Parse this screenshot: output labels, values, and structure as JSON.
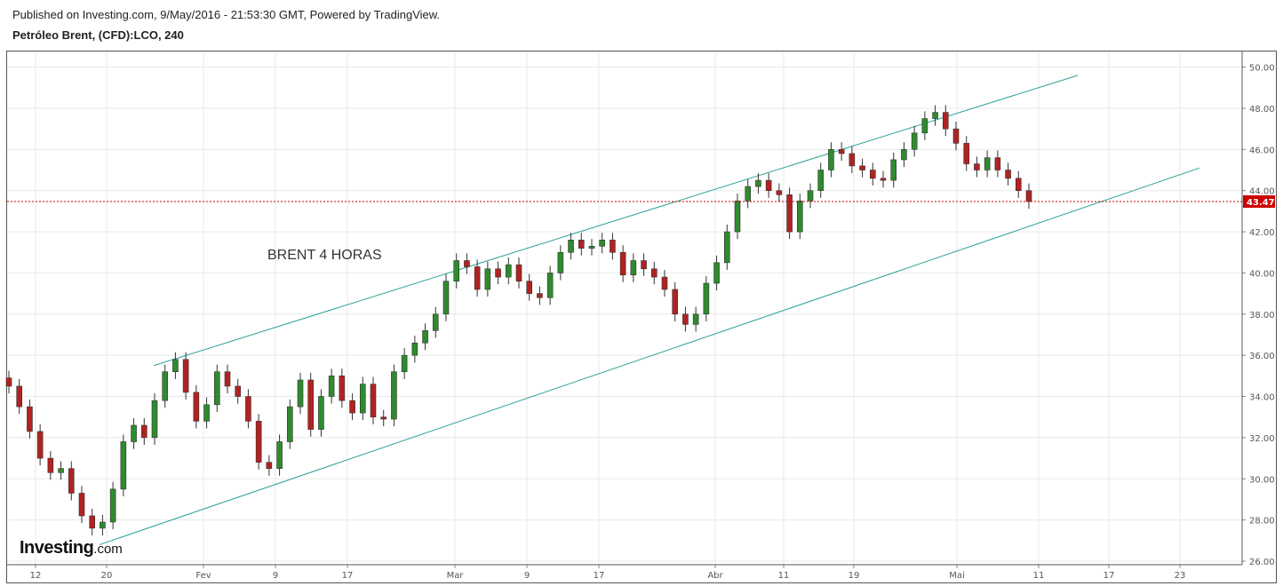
{
  "header": {
    "published": "Published on Investing.com, 9/May/2016 - 21:53:30 GMT, Powered by TradingView.",
    "symbol": "Petróleo Brent, (CFD):LCO, 240"
  },
  "logo": {
    "main": "Investing",
    "suffix": ".com"
  },
  "colors": {
    "up": "#2e8b2e",
    "down": "#b22222",
    "channel": "#2aa198",
    "price_line": "#cc0000",
    "grid": "#e8e8e8"
  },
  "chart_data": {
    "type": "candlestick",
    "title": "",
    "annotation": "BRENT 4 HORAS",
    "ylim": [
      26,
      50.5
    ],
    "y_ticks": [
      "26.00",
      "28.00",
      "30.00",
      "32.00",
      "34.00",
      "36.00",
      "38.00",
      "40.00",
      "42.00",
      "44.00",
      "46.00",
      "48.00",
      "50.00"
    ],
    "x_ticks": [
      "12",
      "20",
      "Fev",
      "9",
      "17",
      "Mar",
      "9",
      "17",
      "Abr",
      "11",
      "19",
      "Mai",
      "11",
      "17",
      "23"
    ],
    "last_price": "43.47",
    "series": [
      {
        "values": [
          [
            "12",
            34.5
          ],
          [
            "",
            33.5
          ],
          [
            "",
            32.3
          ],
          [
            "",
            31.0
          ],
          [
            "",
            30.3
          ],
          [
            "",
            30.5
          ],
          [
            "",
            29.3
          ],
          [
            "",
            28.2
          ],
          [
            "20",
            27.6
          ],
          [
            "",
            27.9
          ],
          [
            "",
            29.5
          ],
          [
            "",
            31.8
          ],
          [
            "",
            32.6
          ],
          [
            "",
            32.0
          ],
          [
            "",
            33.8
          ],
          [
            "",
            35.2
          ],
          [
            "Fev",
            35.8
          ],
          [
            "",
            34.2
          ],
          [
            "",
            32.8
          ],
          [
            "",
            33.6
          ],
          [
            "",
            35.2
          ],
          [
            "",
            34.5
          ],
          [
            "",
            34.0
          ],
          [
            "",
            32.8
          ],
          [
            "9",
            30.8
          ],
          [
            "",
            30.5
          ],
          [
            "",
            31.8
          ],
          [
            "",
            33.5
          ],
          [
            "",
            34.8
          ],
          [
            "",
            32.4
          ],
          [
            "",
            34.0
          ],
          [
            "",
            35.0
          ],
          [
            "17",
            33.8
          ],
          [
            "",
            33.2
          ],
          [
            "",
            34.6
          ],
          [
            "",
            33.0
          ],
          [
            "",
            32.9
          ],
          [
            "",
            35.2
          ],
          [
            "",
            36.0
          ],
          [
            "",
            36.6
          ],
          [
            "Mar",
            37.2
          ],
          [
            "",
            38.0
          ],
          [
            "",
            39.6
          ],
          [
            "",
            40.6
          ],
          [
            "",
            40.3
          ],
          [
            "",
            39.2
          ],
          [
            "",
            40.2
          ],
          [
            "",
            39.8
          ],
          [
            "9",
            40.4
          ],
          [
            "",
            39.6
          ],
          [
            "",
            39.0
          ],
          [
            "",
            38.8
          ],
          [
            "",
            40.0
          ],
          [
            "",
            41.0
          ],
          [
            "",
            41.6
          ],
          [
            "",
            41.2
          ],
          [
            "17",
            41.3
          ],
          [
            "",
            41.6
          ],
          [
            "",
            41.0
          ],
          [
            "",
            39.9
          ],
          [
            "",
            40.6
          ],
          [
            "",
            40.2
          ],
          [
            "",
            39.8
          ],
          [
            "",
            39.2
          ],
          [
            "Abr",
            38.0
          ],
          [
            "",
            37.5
          ],
          [
            "",
            38.0
          ],
          [
            "",
            39.5
          ],
          [
            "",
            40.5
          ],
          [
            "",
            42.0
          ],
          [
            "",
            43.5
          ],
          [
            "",
            44.2
          ],
          [
            "11",
            44.5
          ],
          [
            "",
            44.0
          ],
          [
            "",
            43.8
          ],
          [
            "",
            42.0
          ],
          [
            "",
            43.5
          ],
          [
            "",
            44.0
          ],
          [
            "",
            45.0
          ],
          [
            "",
            46.0
          ],
          [
            "19",
            45.8
          ],
          [
            "",
            45.2
          ],
          [
            "",
            45.0
          ],
          [
            "",
            44.6
          ],
          [
            "",
            44.5
          ],
          [
            "",
            45.5
          ],
          [
            "",
            46.0
          ],
          [
            "",
            46.8
          ],
          [
            "Mai",
            47.5
          ],
          [
            "",
            47.8
          ],
          [
            "",
            47.0
          ],
          [
            "",
            46.3
          ],
          [
            "",
            45.3
          ],
          [
            "",
            45.0
          ],
          [
            "",
            45.6
          ],
          [
            "",
            45.0
          ],
          [
            "",
            44.6
          ],
          [
            "",
            44.0
          ],
          [
            "",
            43.47
          ]
        ]
      }
    ]
  }
}
